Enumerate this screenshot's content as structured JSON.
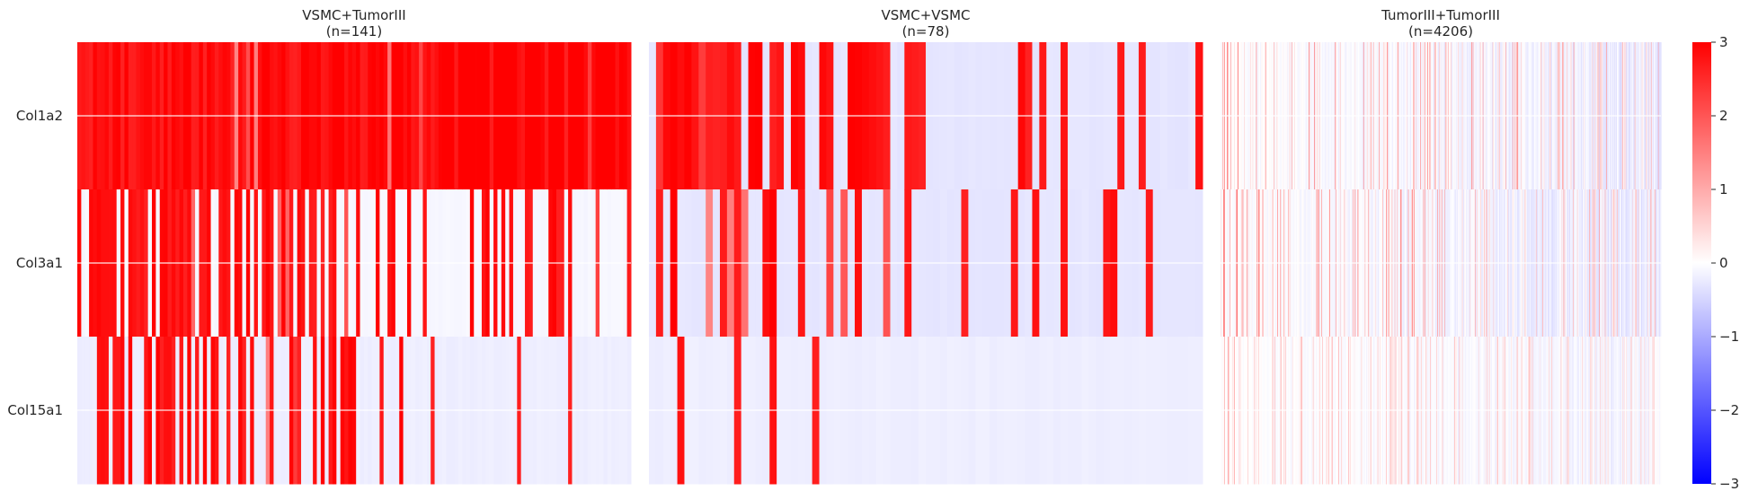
{
  "chart_data": {
    "type": "heatmap",
    "rows": [
      "Col1a2",
      "Col3a1",
      "Col15a1"
    ],
    "panels": [
      {
        "title_line1": "VSMC+TumorIII",
        "title_line2": "(n=141)",
        "n": 141,
        "high_counts": [
          84,
          70,
          42
        ],
        "low_values": [
          3.0,
          -0.1,
          -0.2
        ]
      },
      {
        "title_line1": "VSMC+VSMC",
        "title_line2": "(n=78)",
        "n": 78,
        "high_counts": [
          36,
          22,
          4
        ],
        "low_values": [
          -0.3,
          -0.3,
          -0.2
        ]
      },
      {
        "title_line1": "TumorIII+TumorIII",
        "title_line2": "(n=4206)",
        "n": 4206,
        "style": "dense",
        "approx_range": [
          -0.6,
          1.8
        ]
      }
    ],
    "colorbar": {
      "vmin": -3,
      "vmax": 3,
      "colormap": [
        "#0000ff",
        "#ffffff",
        "#ff0000"
      ],
      "ticks": [
        "3",
        "2",
        "1",
        "0",
        "−1",
        "−2",
        "−3"
      ]
    },
    "grid": true
  }
}
